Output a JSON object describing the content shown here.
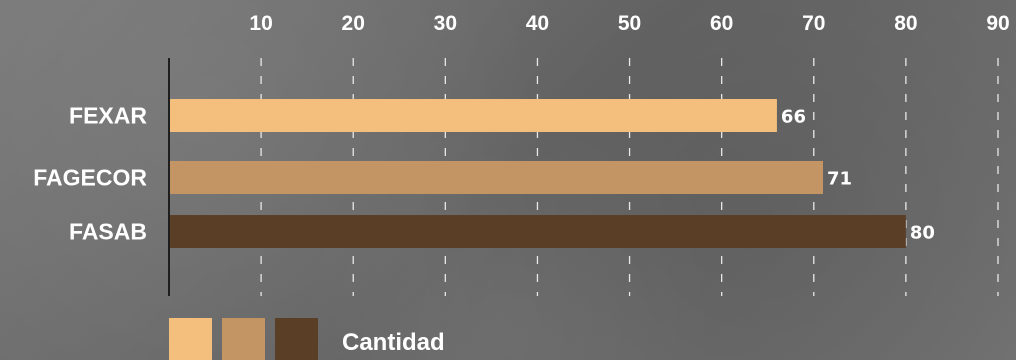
{
  "chart_data": {
    "type": "bar",
    "orientation": "horizontal",
    "categories": [
      "FEXAR",
      "FAGECOR",
      "FASAB"
    ],
    "values": [
      66,
      71,
      80
    ],
    "colors": [
      "#f4be7c",
      "#c49564",
      "#5b3e26"
    ],
    "ticks": [
      10,
      20,
      30,
      40,
      50,
      60,
      70,
      80,
      90
    ],
    "xlim": [
      0,
      90
    ],
    "grid": true,
    "legend": {
      "position": "bottom-left",
      "label": "Cantidad",
      "swatches": [
        "#f4be7c",
        "#c49564",
        "#5b3e26"
      ]
    }
  }
}
